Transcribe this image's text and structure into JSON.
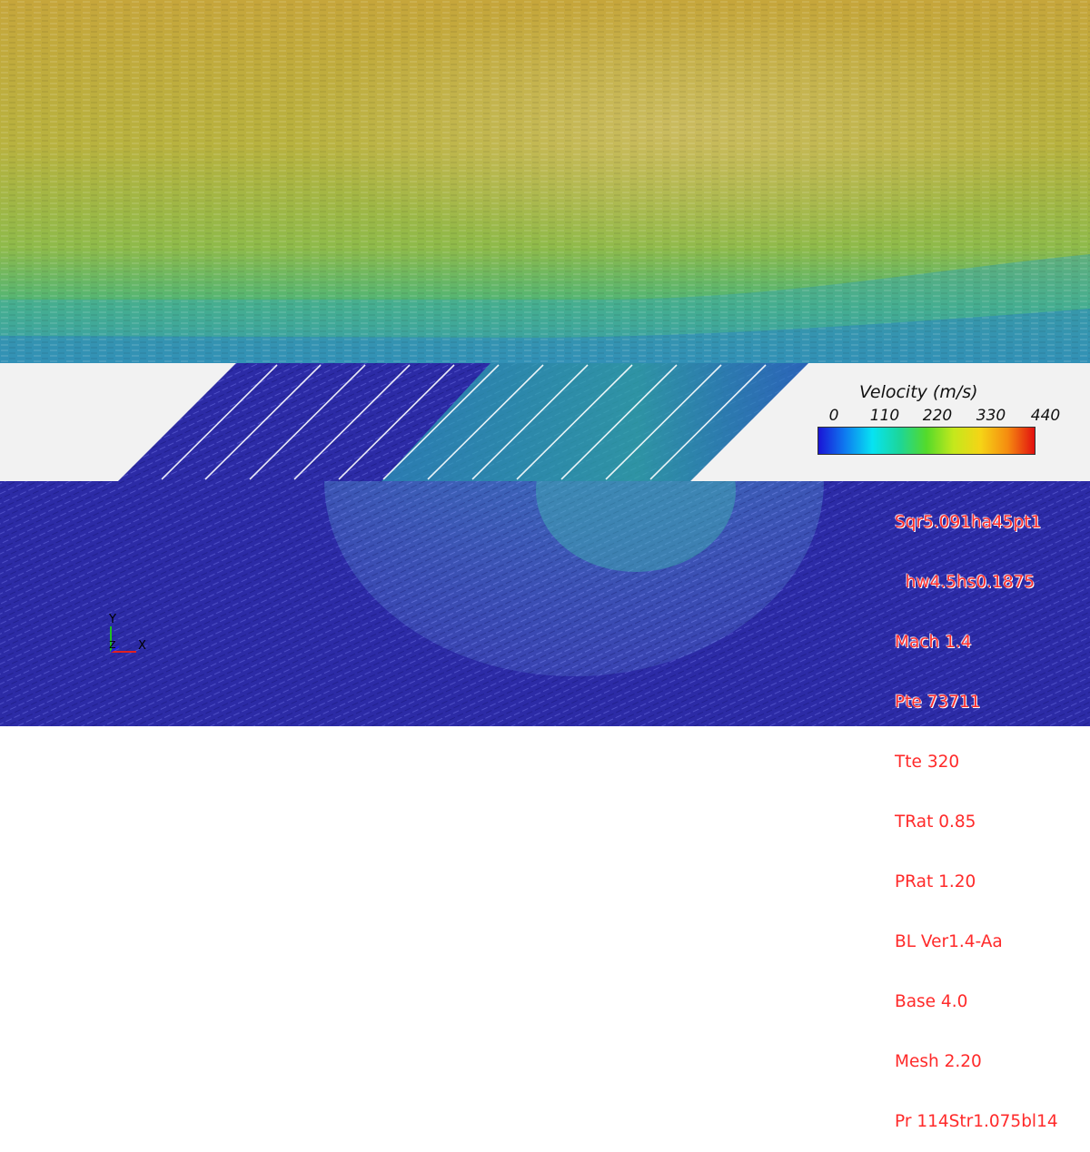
{
  "legend": {
    "title": "Velocity (m/s)",
    "ticks": [
      "0",
      "110",
      "220",
      "330",
      "440"
    ],
    "range": [
      0,
      440
    ],
    "colormap": [
      "#1a14d6",
      "#0e7cf0",
      "#07e3f2",
      "#1cd69a",
      "#54da2a",
      "#c4e81c",
      "#f5d416",
      "#f58c10",
      "#e21010"
    ]
  },
  "info_lines": [
    "Sqr5.091ha45pt1",
    "  hw4.5hs0.1875",
    "Mach 1.4",
    "Pte 73711",
    "Tte 320",
    "TRat 0.85",
    "PRat 1.20",
    "BL Ver1.4-Aa",
    "Base 4.0",
    "Mesh 2.20",
    "Pr 114Str1.075bl14"
  ],
  "axes_triad": {
    "y": "Y",
    "z": "Z",
    "x": "X"
  },
  "colors": {
    "info_text": "#ff2a2a",
    "wall": "#f2f2f2",
    "plenum": "#2c2ba6"
  }
}
